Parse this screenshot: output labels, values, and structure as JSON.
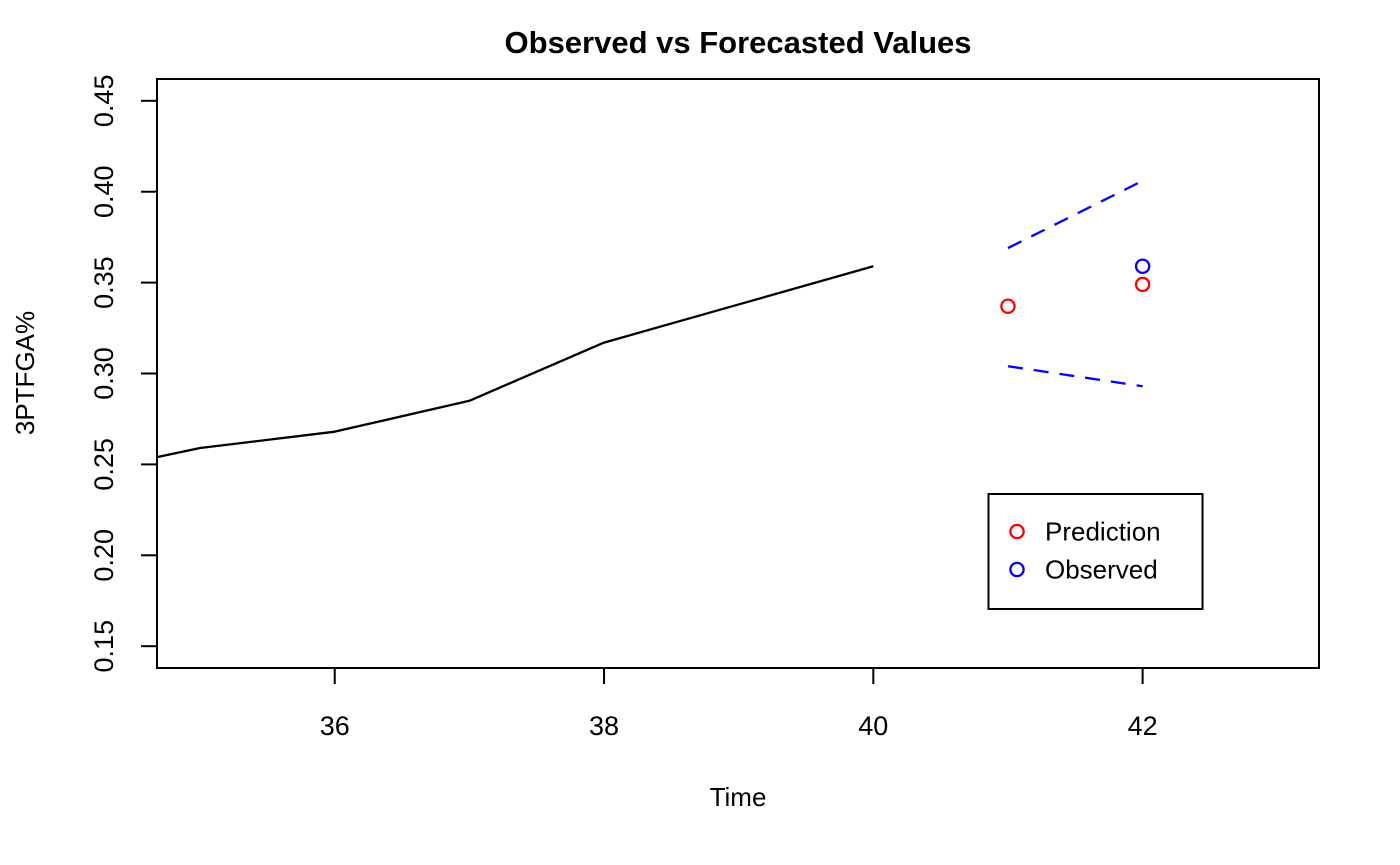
{
  "chart_data": {
    "type": "line",
    "title": "Observed vs Forecasted Values",
    "xlabel": "Time",
    "ylabel": "3PTFGA%",
    "xlim": [
      34.68,
      43.31
    ],
    "ylim": [
      0.138,
      0.462
    ],
    "xticks": [
      36,
      38,
      40,
      42
    ],
    "xtick_labels": [
      "36",
      "38",
      "40",
      "42"
    ],
    "yticks": [
      0.15,
      0.2,
      0.25,
      0.3,
      0.35,
      0.4,
      0.45
    ],
    "ytick_labels": [
      "0.15",
      "0.20",
      "0.25",
      "0.30",
      "0.35",
      "0.40",
      "0.45"
    ],
    "grid": false,
    "background": "#ffffff",
    "axis_color": "#000000",
    "series": [
      {
        "name": "history_line",
        "kind": "line",
        "style": "solid",
        "color": "#000000",
        "x": [
          34.68,
          35,
          36,
          37,
          38,
          39,
          40
        ],
        "y": [
          0.254,
          0.259,
          0.268,
          0.285,
          0.317,
          0.338,
          0.359
        ]
      },
      {
        "name": "interval_upper",
        "kind": "line",
        "style": "dashed",
        "color": "#0000ff",
        "x": [
          41,
          42
        ],
        "y": [
          0.369,
          0.406
        ]
      },
      {
        "name": "interval_lower",
        "kind": "line",
        "style": "dashed",
        "color": "#0000ff",
        "x": [
          41,
          42
        ],
        "y": [
          0.304,
          0.293
        ]
      },
      {
        "name": "prediction_points",
        "kind": "points",
        "marker": "open-circle",
        "color": "#ff0000",
        "x": [
          41,
          42
        ],
        "y": [
          0.337,
          0.349
        ]
      },
      {
        "name": "observed_points",
        "kind": "points",
        "marker": "open-circle",
        "color": "#0000ff",
        "x": [
          42
        ],
        "y": [
          0.359
        ]
      }
    ],
    "legend": {
      "position": "right-middle",
      "items": [
        {
          "label": "Prediction",
          "color": "#ff0000",
          "marker": "open-circle"
        },
        {
          "label": "Observed",
          "color": "#0000ff",
          "marker": "open-circle"
        }
      ]
    }
  }
}
